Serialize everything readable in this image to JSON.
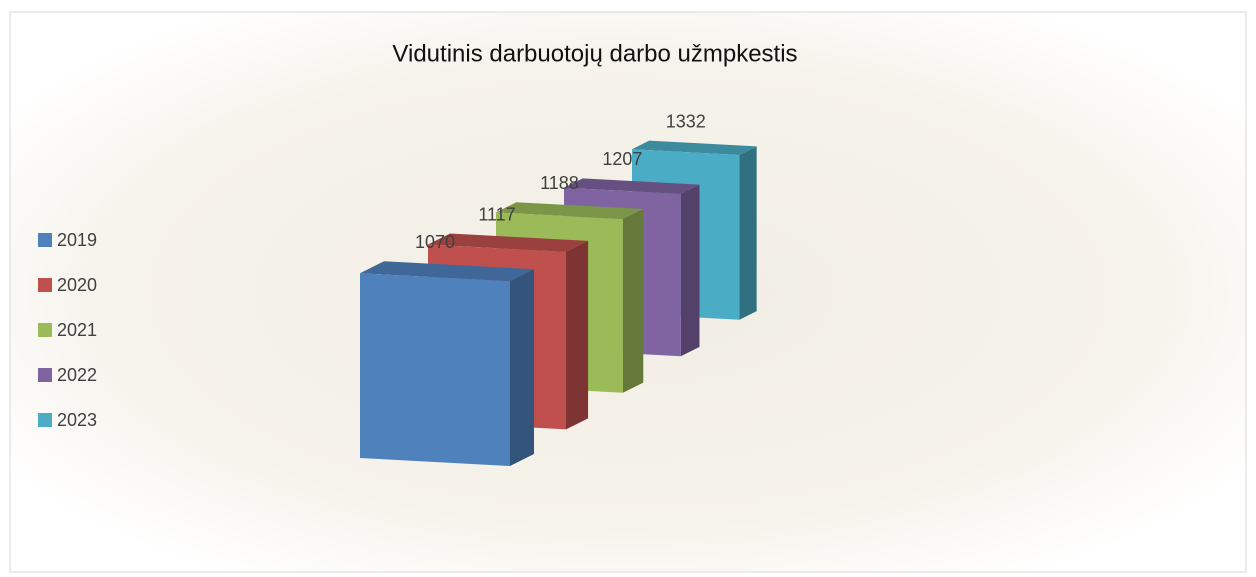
{
  "chart_data": {
    "type": "bar3d",
    "title": "Vidutinis darbuotojų darbo užmpkestis",
    "series": [
      {
        "name": "2019",
        "color": "#4f81bd",
        "values": [
          1070
        ]
      },
      {
        "name": "2020",
        "color": "#c0504d",
        "values": [
          1117
        ]
      },
      {
        "name": "2021",
        "color": "#9bbb59",
        "values": [
          1188
        ]
      },
      {
        "name": "2022",
        "color": "#8064a2",
        "values": [
          1207
        ]
      },
      {
        "name": "2023",
        "color": "#4bacc6",
        "values": [
          1332
        ]
      }
    ],
    "legend": "left"
  }
}
